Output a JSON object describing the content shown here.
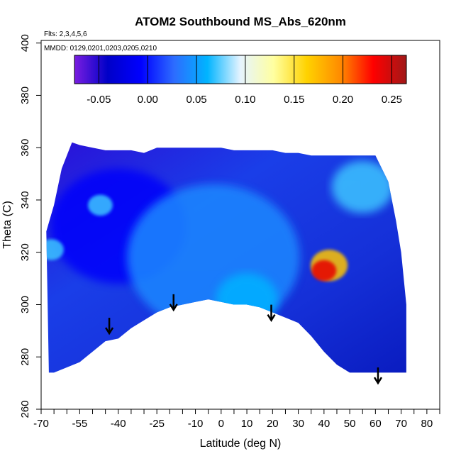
{
  "chart_data": {
    "type": "heatmap",
    "title": "ATOM2 Southbound MS_Abs_620nm",
    "annotations": {
      "flights": "Flts: 2,3,4,5,6",
      "dates": "MMDD: 0129,0201,0203,0205,0210"
    },
    "xlabel": "Latitude (deg N)",
    "ylabel": "Theta (C)",
    "xlim": [
      -70,
      85
    ],
    "ylim": [
      260,
      401
    ],
    "x_ticks": [
      -70,
      -65,
      -60,
      -55,
      -50,
      -45,
      -40,
      -35,
      -30,
      -25,
      -20,
      -15,
      -10,
      -5,
      0,
      5,
      10,
      15,
      20,
      25,
      30,
      35,
      40,
      45,
      50,
      55,
      60,
      65,
      70,
      75,
      80,
      85
    ],
    "x_tick_labels": [
      "-70",
      "",
      "",
      "-55",
      "",
      "",
      "-40",
      "",
      "",
      "-25",
      "",
      "",
      "-10",
      "",
      "0",
      "",
      "10",
      "",
      "20",
      "",
      "30",
      "",
      "40",
      "",
      "50",
      "",
      "60",
      "",
      "70",
      "",
      "80",
      ""
    ],
    "y_ticks": [
      260,
      280,
      300,
      320,
      340,
      360,
      380,
      400
    ],
    "y_tick_labels": [
      "260",
      "280",
      "300",
      "320",
      "340",
      "360",
      "380",
      "400"
    ],
    "colorbar": {
      "range": [
        -0.075,
        0.265
      ],
      "ticks": [
        -0.05,
        0.0,
        0.05,
        0.1,
        0.15,
        0.2,
        0.25
      ],
      "tick_labels": [
        "-0.05",
        "0.00",
        "0.05",
        "0.10",
        "0.15",
        "0.20",
        "0.25"
      ],
      "colors": [
        "#7a1ee0",
        "#0000c8",
        "#0000ff",
        "#2d6cff",
        "#00b4ff",
        "#e6f4ff",
        "#ffffa0",
        "#ffd200",
        "#ff8c00",
        "#ff0000",
        "#a01818"
      ]
    },
    "boundary_top": [
      [
        -68,
        328
      ],
      [
        -65,
        338
      ],
      [
        -62,
        352
      ],
      [
        -58,
        362
      ],
      [
        -55,
        361
      ],
      [
        -50,
        360
      ],
      [
        -45,
        359
      ],
      [
        -40,
        359
      ],
      [
        -35,
        359
      ],
      [
        -30,
        358
      ],
      [
        -25,
        360
      ],
      [
        -20,
        360
      ],
      [
        -15,
        360
      ],
      [
        -10,
        360
      ],
      [
        -5,
        360
      ],
      [
        0,
        360
      ],
      [
        5,
        359
      ],
      [
        10,
        359
      ],
      [
        15,
        359
      ],
      [
        20,
        359
      ],
      [
        25,
        358
      ],
      [
        30,
        358
      ],
      [
        35,
        357
      ],
      [
        40,
        357
      ],
      [
        45,
        357
      ],
      [
        50,
        357
      ],
      [
        55,
        357
      ],
      [
        60,
        357
      ],
      [
        65,
        347
      ],
      [
        68,
        332
      ],
      [
        70,
        320
      ],
      [
        72,
        300
      ],
      [
        72,
        275
      ]
    ],
    "boundary_bottom": [
      [
        72,
        274
      ],
      [
        68,
        274
      ],
      [
        60,
        274
      ],
      [
        50,
        274
      ],
      [
        45,
        277
      ],
      [
        40,
        282
      ],
      [
        35,
        288
      ],
      [
        30,
        293
      ],
      [
        25,
        295
      ],
      [
        20,
        297
      ],
      [
        15,
        299
      ],
      [
        10,
        300
      ],
      [
        5,
        300
      ],
      [
        0,
        301
      ],
      [
        -5,
        302
      ],
      [
        -10,
        301
      ],
      [
        -15,
        300
      ],
      [
        -20,
        299
      ],
      [
        -25,
        297
      ],
      [
        -30,
        294
      ],
      [
        -35,
        291
      ],
      [
        -40,
        287
      ],
      [
        -45,
        286
      ],
      [
        -50,
        282
      ],
      [
        -55,
        278
      ],
      [
        -60,
        276
      ],
      [
        -65,
        274
      ],
      [
        -67,
        274
      ]
    ],
    "features": [
      {
        "x": -40,
        "y": 330,
        "r": 22,
        "value": -0.01
      },
      {
        "x": -3,
        "y": 318,
        "r": 28,
        "value": 0.04
      },
      {
        "x": 42,
        "y": 315,
        "r": 6,
        "value": 0.17
      },
      {
        "x": 40,
        "y": 313,
        "r": 4,
        "value": 0.24
      },
      {
        "x": -66,
        "y": 321,
        "r": 4,
        "value": 0.07
      },
      {
        "x": -47,
        "y": 338,
        "r": 4,
        "value": 0.07
      },
      {
        "x": 10,
        "y": 302,
        "r": 10,
        "value": 0.06
      },
      {
        "x": 55,
        "y": 345,
        "r": 10,
        "value": 0.07
      }
    ],
    "arrows": [
      {
        "x": -43.5,
        "y_tip": 289
      },
      {
        "x": -18.5,
        "y_tip": 298
      },
      {
        "x": 19.5,
        "y_tip": 294
      },
      {
        "x": 61,
        "y_tip": 270
      }
    ]
  }
}
